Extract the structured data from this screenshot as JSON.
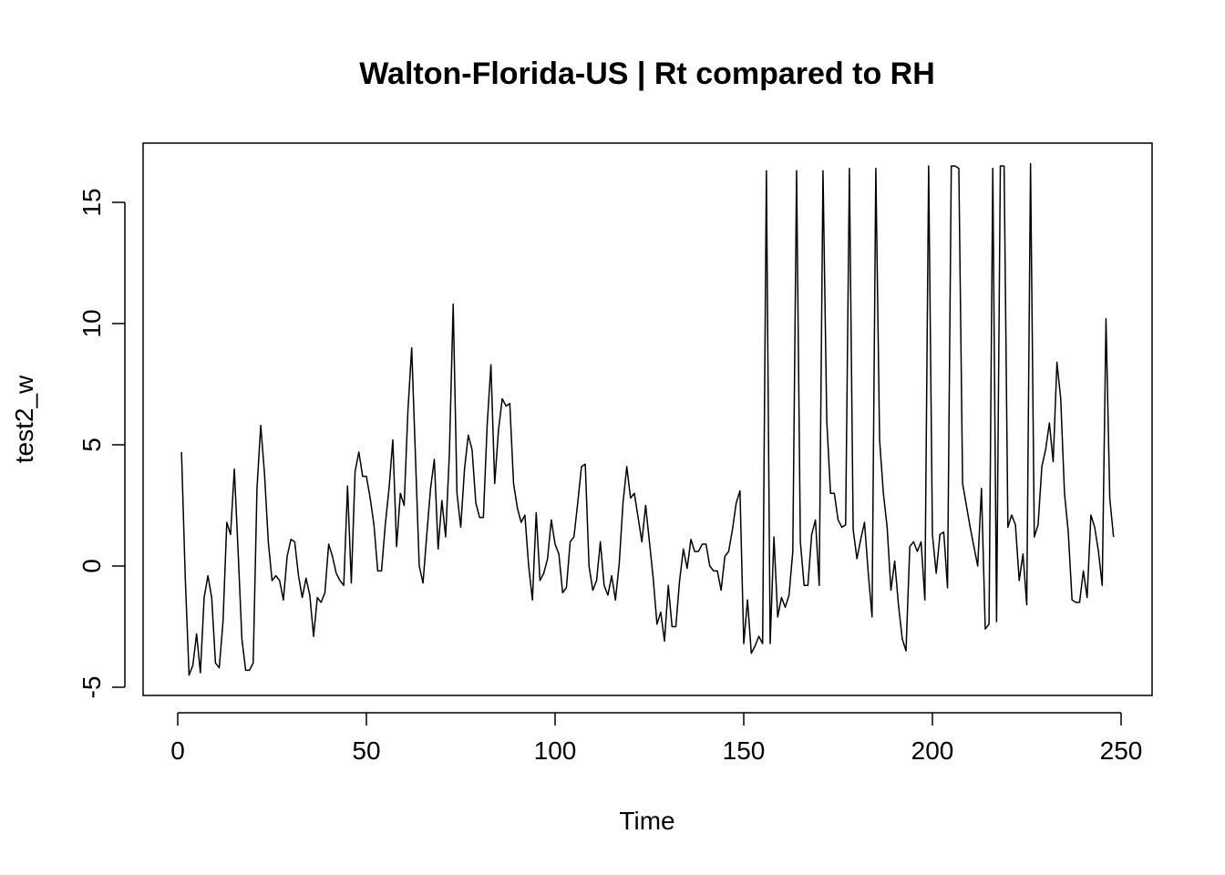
{
  "chart_data": {
    "type": "line",
    "title": "Walton-Florida-US | Rt compared to RH",
    "xlabel": "Time",
    "ylabel": "test2_w",
    "xlim": [
      0,
      250
    ],
    "ylim": [
      -5,
      17
    ],
    "x_ticks": [
      0,
      50,
      100,
      150,
      200,
      250
    ],
    "y_ticks": [
      -5,
      0,
      5,
      10,
      15
    ],
    "x_tick_labels": [
      "0",
      "50",
      "100",
      "150",
      "200",
      "250"
    ],
    "y_tick_labels": [
      "-5",
      "0",
      "5",
      "10",
      "15"
    ],
    "grid": false,
    "legend": "none",
    "line_color": "#000000",
    "series": [
      {
        "x_start": 1,
        "x_step": 1,
        "values": [
          4.7,
          -0.5,
          -4.5,
          -4.1,
          -2.8,
          -4.4,
          -1.3,
          -0.4,
          -1.3,
          -4.0,
          -4.2,
          -2.3,
          1.8,
          1.3,
          4.0,
          0.6,
          -3.0,
          -4.3,
          -4.3,
          -4.0,
          3.2,
          5.8,
          3.8,
          1.0,
          -0.6,
          -0.4,
          -0.6,
          -1.4,
          0.4,
          1.1,
          1.0,
          -0.4,
          -1.3,
          -0.5,
          -1.2,
          -2.9,
          -1.3,
          -1.5,
          -1.1,
          0.9,
          0.4,
          -0.3,
          -0.6,
          -0.8,
          3.3,
          -0.7,
          3.9,
          4.7,
          3.7,
          3.7,
          2.8,
          1.7,
          -0.2,
          -0.2,
          1.7,
          3.2,
          5.2,
          0.8,
          3.0,
          2.5,
          6.4,
          9.0,
          4.5,
          0.0,
          -0.7,
          1.3,
          3.2,
          4.4,
          0.7,
          2.7,
          1.2,
          4.7,
          10.8,
          3.0,
          1.6,
          4.0,
          5.4,
          4.8,
          2.6,
          2.0,
          2.0,
          5.8,
          8.3,
          3.4,
          5.6,
          6.9,
          6.6,
          6.7,
          3.4,
          2.4,
          1.8,
          2.1,
          0.0,
          -1.4,
          2.2,
          -0.6,
          -0.3,
          0.3,
          1.9,
          0.9,
          0.5,
          -1.1,
          -0.9,
          1.0,
          1.2,
          2.6,
          4.1,
          4.2,
          0.0,
          -1.0,
          -0.6,
          1.0,
          -0.8,
          -1.2,
          -0.4,
          -1.4,
          0.1,
          2.6,
          4.1,
          2.8,
          3.0,
          2.0,
          1.0,
          2.5,
          1.0,
          -0.5,
          -2.4,
          -1.9,
          -3.1,
          -0.8,
          -2.5,
          -2.5,
          -0.6,
          0.7,
          -0.1,
          1.1,
          0.6,
          0.6,
          0.9,
          0.9,
          0.0,
          -0.2,
          -0.2,
          -1.0,
          0.4,
          0.6,
          1.5,
          2.6,
          3.1,
          -3.2,
          -1.4,
          -3.6,
          -3.3,
          -2.9,
          -3.2,
          16.3,
          -3.2,
          1.2,
          -2.1,
          -1.3,
          -1.7,
          -1.2,
          0.6,
          16.3,
          1.0,
          -0.8,
          -0.8,
          1.3,
          1.9,
          -0.8,
          16.3,
          6.0,
          3.0,
          3.0,
          1.9,
          1.6,
          1.7,
          16.4,
          1.5,
          0.3,
          1.1,
          1.8,
          -0.3,
          -2.1,
          16.4,
          5.2,
          3.0,
          1.6,
          -1.0,
          0.2,
          -1.6,
          -3.0,
          -3.5,
          0.8,
          1.0,
          0.6,
          1.0,
          -1.4,
          16.5,
          1.3,
          -0.3,
          1.3,
          1.4,
          -0.9,
          16.5,
          16.5,
          16.4,
          3.4,
          2.5,
          1.6,
          0.8,
          0.0,
          3.2,
          -2.6,
          -2.4,
          16.4,
          -2.3,
          16.5,
          16.5,
          1.6,
          2.1,
          1.7,
          -0.6,
          0.5,
          -1.6,
          16.6,
          1.2,
          1.7,
          4.1,
          4.8,
          5.9,
          4.3,
          8.4,
          6.9,
          3.0,
          1.4,
          -1.4,
          -1.5,
          -1.5,
          -0.2,
          -1.3,
          2.1,
          1.6,
          0.6,
          -0.8,
          10.2,
          2.8,
          1.2
        ]
      }
    ]
  }
}
